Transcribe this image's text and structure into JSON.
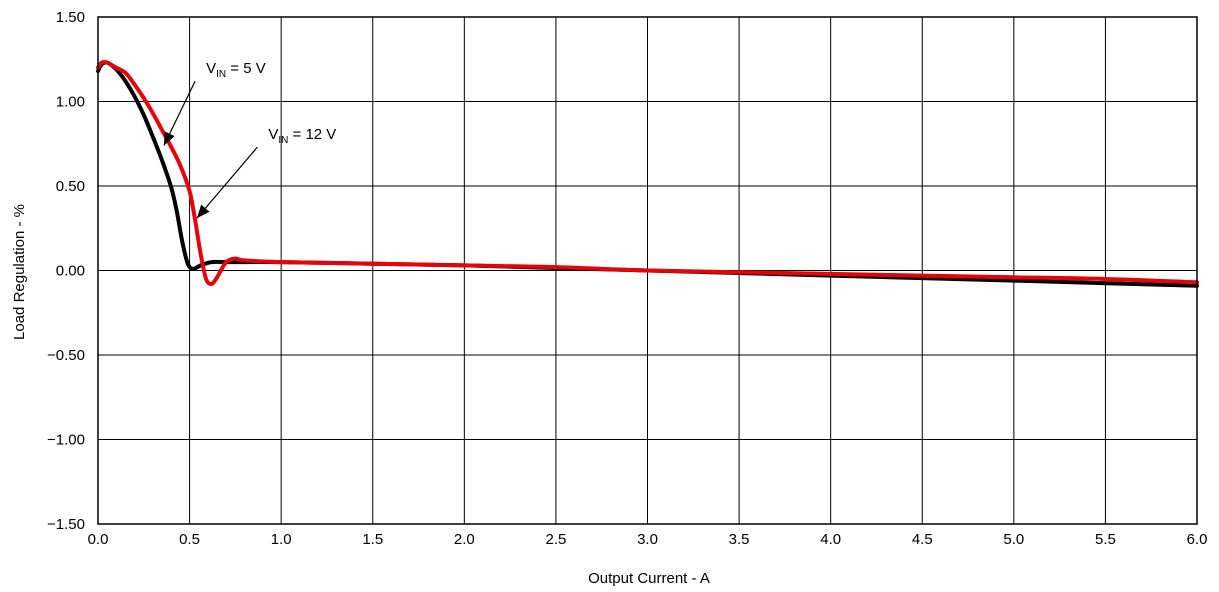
{
  "chart_data": {
    "type": "line",
    "title": "",
    "xlabel": "Output Current - A",
    "ylabel": "Load Regulation  - %",
    "xlim": [
      0,
      6
    ],
    "ylim": [
      -1.5,
      1.5
    ],
    "grid": true,
    "x_ticks": [
      "0.0",
      "0.5",
      "1.0",
      "1.5",
      "2.0",
      "2.5",
      "3.0",
      "3.5",
      "4.0",
      "4.5",
      "5.0",
      "5.5",
      "6.0"
    ],
    "y_ticks": [
      "1.50",
      "1.00",
      "0.50",
      "0.00",
      "−0.50",
      "−1.00",
      "−1.50"
    ],
    "series": [
      {
        "name": "VIN = 5 V",
        "color": "#000000",
        "points": [
          [
            0.0,
            1.18
          ],
          [
            0.02,
            1.22
          ],
          [
            0.05,
            1.23
          ],
          [
            0.1,
            1.19
          ],
          [
            0.15,
            1.12
          ],
          [
            0.2,
            1.03
          ],
          [
            0.25,
            0.92
          ],
          [
            0.3,
            0.79
          ],
          [
            0.35,
            0.65
          ],
          [
            0.4,
            0.49
          ],
          [
            0.43,
            0.35
          ],
          [
            0.46,
            0.17
          ],
          [
            0.49,
            0.04
          ],
          [
            0.52,
            0.01
          ],
          [
            0.56,
            0.03
          ],
          [
            0.62,
            0.05
          ],
          [
            0.7,
            0.05
          ],
          [
            0.8,
            0.05
          ],
          [
            1.0,
            0.05
          ],
          [
            1.5,
            0.04
          ],
          [
            2.0,
            0.03
          ],
          [
            2.5,
            0.015
          ],
          [
            3.0,
            0.0
          ],
          [
            3.5,
            -0.015
          ],
          [
            4.0,
            -0.03
          ],
          [
            4.5,
            -0.045
          ],
          [
            5.0,
            -0.06
          ],
          [
            5.5,
            -0.075
          ],
          [
            6.0,
            -0.09
          ]
        ]
      },
      {
        "name": "VIN = 12 V",
        "color": "#e8000b",
        "points": [
          [
            0.0,
            1.2
          ],
          [
            0.02,
            1.23
          ],
          [
            0.05,
            1.23
          ],
          [
            0.1,
            1.2
          ],
          [
            0.15,
            1.17
          ],
          [
            0.2,
            1.1
          ],
          [
            0.25,
            1.02
          ],
          [
            0.3,
            0.93
          ],
          [
            0.35,
            0.83
          ],
          [
            0.4,
            0.73
          ],
          [
            0.45,
            0.62
          ],
          [
            0.5,
            0.47
          ],
          [
            0.53,
            0.3
          ],
          [
            0.56,
            0.1
          ],
          [
            0.59,
            -0.05
          ],
          [
            0.62,
            -0.08
          ],
          [
            0.65,
            -0.04
          ],
          [
            0.7,
            0.05
          ],
          [
            0.75,
            0.07
          ],
          [
            0.8,
            0.06
          ],
          [
            1.0,
            0.05
          ],
          [
            1.5,
            0.04
          ],
          [
            2.0,
            0.03
          ],
          [
            2.5,
            0.02
          ],
          [
            3.0,
            0.0
          ],
          [
            3.5,
            -0.01
          ],
          [
            4.0,
            -0.02
          ],
          [
            4.5,
            -0.03
          ],
          [
            5.0,
            -0.04
          ],
          [
            5.5,
            -0.05
          ],
          [
            6.0,
            -0.07
          ]
        ]
      }
    ],
    "annotations": [
      {
        "v": "V",
        "sub": "IN",
        "rest": " = 5 V",
        "arrow_to": [
          0.36,
          0.74
        ],
        "arrow_from": [
          0.53,
          1.12
        ]
      },
      {
        "v": "V",
        "sub": "IN",
        "rest": " = 12 V",
        "arrow_to": [
          0.54,
          0.31
        ],
        "arrow_from": [
          0.87,
          0.73
        ]
      }
    ]
  }
}
